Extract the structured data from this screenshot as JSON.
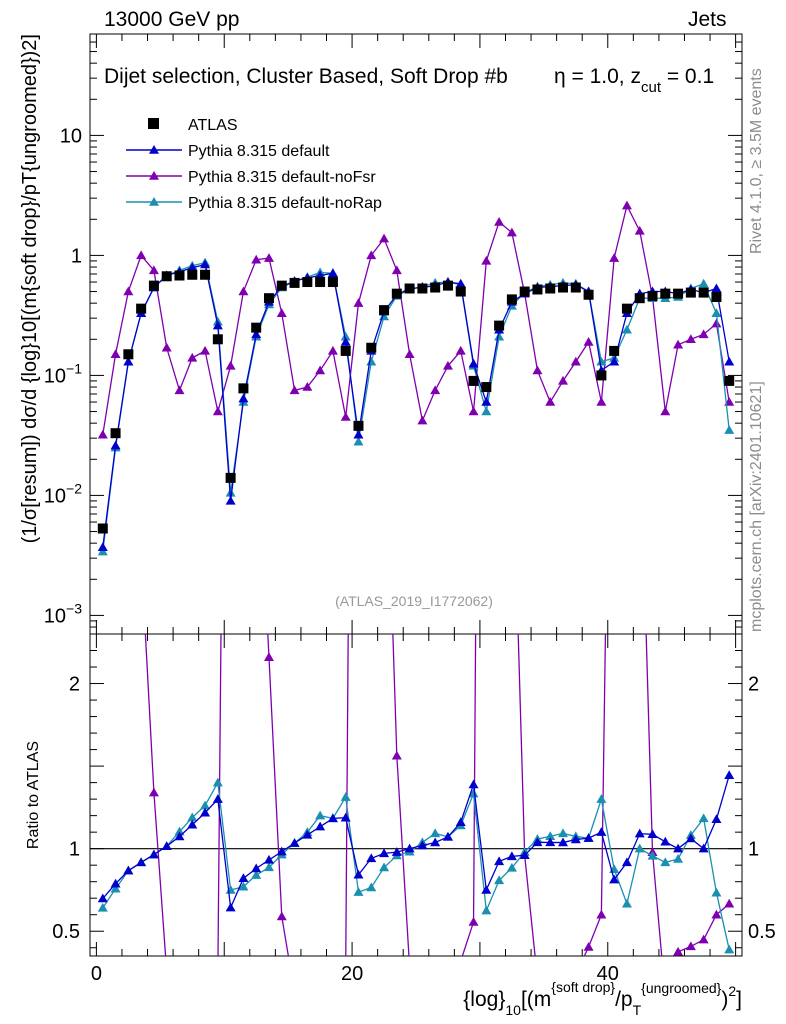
{
  "header": {
    "left": "13000 GeV pp",
    "right": "Jets"
  },
  "side": {
    "rivet": "Rivet 4.1.0, ≥ 3.5M events",
    "mcplots": "mcplots.cern.ch [arXiv:2401.10621]"
  },
  "chart_data": {
    "type": "scatter",
    "title": "Dijet selection, Cluster Based, Soft Drop #b",
    "title_suffix": "η = 1.0, z",
    "title_sub": "cut",
    "title_end": " = 0.1",
    "watermark": "(ATLAS_2019_I1772062)",
    "main_panel": {
      "yscale": "log",
      "ylim": [
        0.0007,
        70
      ],
      "xlim": [
        -0.5,
        50.5
      ],
      "ylabel": "(1/σ[resum]) dσ/d {log}10[(m{soft drop}/pT{ungroomed})2]",
      "yticks": [
        0.001,
        0.01,
        0.1,
        1,
        10
      ],
      "ytick_labels": [
        {
          "base": "10",
          "exp": "−3",
          "value": 0.001
        },
        {
          "base": "10",
          "exp": "−2",
          "value": 0.01
        },
        {
          "base": "10",
          "exp": "−1",
          "value": 0.1
        },
        {
          "base": "1",
          "exp": "",
          "value": 1
        },
        {
          "base": "10",
          "exp": "",
          "value": 10
        }
      ]
    },
    "ratio_panel": {
      "ylabel": "Ratio to ATLAS",
      "ylim": [
        0.35,
        2.3
      ],
      "yticks": [
        0.5,
        1,
        2
      ],
      "ytick_labels": [
        "0.5",
        "1",
        "2"
      ]
    },
    "x": {
      "label_main": "{log}",
      "label_sub": "10",
      "label_mid": "[(m",
      "label_sup1": "{soft drop}",
      "label_slash": "/p",
      "label_sub2": "T",
      "label_sup2": "{ungroomed}",
      "label_end": ")",
      "label_sup3": "2",
      "label_close": "]",
      "ticks": [
        0,
        20,
        40
      ],
      "tick_labels": [
        "0",
        "20",
        "40"
      ]
    },
    "series": [
      {
        "name": "ATLAS",
        "marker": "square",
        "color": "#000000",
        "x": [
          0.5,
          1.5,
          2.5,
          3.5,
          4.5,
          5.5,
          6.5,
          7.5,
          8.5,
          9.5,
          10.5,
          11.5,
          12.5,
          13.5,
          14.5,
          15.5,
          16.5,
          17.5,
          18.5,
          19.5,
          20.5,
          21.5,
          22.5,
          23.5,
          24.5,
          25.5,
          26.5,
          27.5,
          28.5,
          29.5,
          30.5,
          31.5,
          32.5,
          33.5,
          34.5,
          35.5,
          36.5,
          37.5,
          38.5,
          39.5,
          40.5,
          41.5,
          42.5,
          43.5,
          44.5,
          45.5,
          46.5,
          47.5,
          48.5,
          49.5
        ],
        "values": [
          0.0053,
          0.033,
          0.15,
          0.36,
          0.56,
          0.67,
          0.68,
          0.69,
          0.69,
          0.2,
          0.014,
          0.078,
          0.25,
          0.44,
          0.56,
          0.59,
          0.6,
          0.6,
          0.6,
          0.16,
          0.038,
          0.17,
          0.35,
          0.48,
          0.53,
          0.53,
          0.54,
          0.56,
          0.5,
          0.09,
          0.08,
          0.26,
          0.43,
          0.5,
          0.52,
          0.53,
          0.54,
          0.54,
          0.47,
          0.1,
          0.16,
          0.36,
          0.44,
          0.46,
          0.48,
          0.48,
          0.49,
          0.49,
          0.45,
          0.09
        ]
      },
      {
        "name": "Pythia 8.315 default",
        "marker": "triangle",
        "color": "#0000cc",
        "x": [
          0.5,
          1.5,
          2.5,
          3.5,
          4.5,
          5.5,
          6.5,
          7.5,
          8.5,
          9.5,
          10.5,
          11.5,
          12.5,
          13.5,
          14.5,
          15.5,
          16.5,
          17.5,
          18.5,
          19.5,
          20.5,
          21.5,
          22.5,
          23.5,
          24.5,
          25.5,
          26.5,
          27.5,
          28.5,
          29.5,
          30.5,
          31.5,
          32.5,
          33.5,
          34.5,
          35.5,
          36.5,
          37.5,
          38.5,
          39.5,
          40.5,
          41.5,
          42.5,
          43.5,
          44.5,
          45.5,
          46.5,
          47.5,
          48.5,
          49.5
        ],
        "values": [
          0.0037,
          0.026,
          0.13,
          0.33,
          0.54,
          0.68,
          0.73,
          0.79,
          0.84,
          0.26,
          0.009,
          0.064,
          0.22,
          0.41,
          0.55,
          0.61,
          0.65,
          0.68,
          0.71,
          0.19,
          0.032,
          0.16,
          0.34,
          0.47,
          0.53,
          0.54,
          0.56,
          0.6,
          0.58,
          0.125,
          0.06,
          0.24,
          0.41,
          0.48,
          0.54,
          0.55,
          0.56,
          0.57,
          0.5,
          0.11,
          0.13,
          0.33,
          0.48,
          0.5,
          0.5,
          0.48,
          0.52,
          0.49,
          0.53,
          0.13
        ]
      },
      {
        "name": "Pythia 8.315 default-noFsr",
        "marker": "triangle",
        "color": "#8000b0",
        "x": [
          0.5,
          1.5,
          2.5,
          3.5,
          4.5,
          5.5,
          6.5,
          7.5,
          8.5,
          9.5,
          10.5,
          11.5,
          12.5,
          13.5,
          14.5,
          15.5,
          16.5,
          17.5,
          18.5,
          19.5,
          20.5,
          21.5,
          22.5,
          23.5,
          24.5,
          25.5,
          26.5,
          27.5,
          28.5,
          29.5,
          30.5,
          31.5,
          32.5,
          33.5,
          34.5,
          35.5,
          36.5,
          37.5,
          38.5,
          39.5,
          40.5,
          41.5,
          42.5,
          43.5,
          44.5,
          45.5,
          46.5,
          47.5,
          48.5,
          49.5
        ],
        "values": [
          0.032,
          0.15,
          0.5,
          1.0,
          0.75,
          0.17,
          0.075,
          0.14,
          0.16,
          0.05,
          0.12,
          0.5,
          0.92,
          0.95,
          0.33,
          0.075,
          0.08,
          0.11,
          0.16,
          0.045,
          0.4,
          1.0,
          1.38,
          0.75,
          0.15,
          0.042,
          0.075,
          0.12,
          0.16,
          0.05,
          0.9,
          1.9,
          1.55,
          0.48,
          0.11,
          0.06,
          0.09,
          0.13,
          0.19,
          0.06,
          0.95,
          2.6,
          1.6,
          0.45,
          0.05,
          0.18,
          0.2,
          0.22,
          0.27,
          0.06
        ]
      },
      {
        "name": "Pythia 8.315 default-noRap",
        "marker": "triangle",
        "color": "#1a90b0",
        "x": [
          0.5,
          1.5,
          2.5,
          3.5,
          4.5,
          5.5,
          6.5,
          7.5,
          8.5,
          9.5,
          10.5,
          11.5,
          12.5,
          13.5,
          14.5,
          15.5,
          16.5,
          17.5,
          18.5,
          19.5,
          20.5,
          21.5,
          22.5,
          23.5,
          24.5,
          25.5,
          26.5,
          27.5,
          28.5,
          29.5,
          30.5,
          31.5,
          32.5,
          33.5,
          34.5,
          35.5,
          36.5,
          37.5,
          38.5,
          39.5,
          40.5,
          41.5,
          42.5,
          43.5,
          44.5,
          45.5,
          46.5,
          47.5,
          48.5,
          49.5
        ],
        "values": [
          0.0034,
          0.025,
          0.13,
          0.33,
          0.54,
          0.68,
          0.75,
          0.82,
          0.87,
          0.28,
          0.0105,
          0.06,
          0.21,
          0.39,
          0.54,
          0.61,
          0.66,
          0.72,
          0.71,
          0.21,
          0.028,
          0.13,
          0.31,
          0.46,
          0.52,
          0.55,
          0.59,
          0.6,
          0.57,
          0.12,
          0.05,
          0.21,
          0.38,
          0.49,
          0.55,
          0.57,
          0.59,
          0.58,
          0.5,
          0.13,
          0.14,
          0.24,
          0.44,
          0.44,
          0.44,
          0.45,
          0.53,
          0.58,
          0.33,
          0.035
        ]
      }
    ]
  }
}
